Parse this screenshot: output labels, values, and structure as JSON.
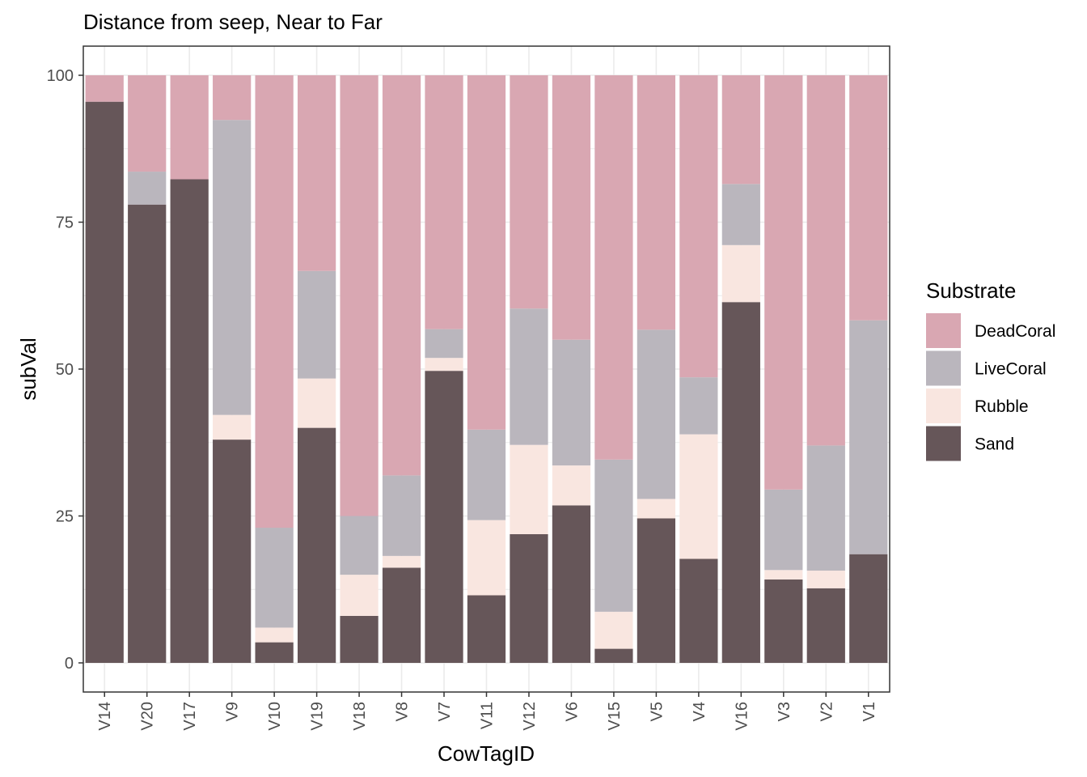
{
  "chart_data": {
    "type": "bar",
    "stacked": true,
    "title": "Distance from seep, Near to Far",
    "xlabel": "CowTagID",
    "ylabel": "subVal",
    "ylim": [
      0,
      100
    ],
    "yticks": [
      0,
      25,
      50,
      75,
      100
    ],
    "grid": true,
    "legend": {
      "title": "Substrate",
      "position": "right"
    },
    "categories": [
      "V14",
      "V20",
      "V17",
      "V9",
      "V10",
      "V19",
      "V18",
      "V8",
      "V7",
      "V11",
      "V12",
      "V6",
      "V15",
      "V5",
      "V4",
      "V16",
      "V3",
      "V2",
      "V1"
    ],
    "series": [
      {
        "name": "Sand",
        "color": "#665659",
        "values": [
          95.5,
          78.0,
          82.3,
          38.0,
          3.5,
          40.0,
          8.0,
          16.2,
          49.7,
          11.5,
          21.9,
          26.8,
          2.4,
          24.6,
          17.7,
          61.4,
          14.2,
          12.7,
          18.5
        ]
      },
      {
        "name": "Rubble",
        "color": "#f9e6e0",
        "values": [
          0,
          0,
          0,
          4.2,
          2.5,
          8.4,
          7.0,
          2.0,
          2.2,
          12.8,
          15.2,
          6.8,
          6.3,
          3.3,
          21.2,
          9.7,
          1.6,
          3.0,
          0
        ]
      },
      {
        "name": "LiveCoral",
        "color": "#bab6bd",
        "values": [
          0,
          5.6,
          0,
          50.2,
          17.0,
          18.3,
          10.0,
          13.7,
          4.9,
          15.4,
          23.2,
          21.4,
          25.9,
          28.8,
          9.7,
          10.4,
          13.7,
          21.3,
          39.8
        ]
      },
      {
        "name": "DeadCoral",
        "color": "#d9a7b2",
        "values": [
          4.5,
          16.4,
          17.7,
          7.6,
          77.0,
          33.3,
          75.0,
          68.1,
          43.2,
          60.3,
          39.7,
          45.0,
          65.4,
          43.3,
          51.4,
          18.5,
          70.5,
          63.0,
          41.7
        ]
      }
    ],
    "legend_order": [
      "DeadCoral",
      "LiveCoral",
      "Rubble",
      "Sand"
    ]
  }
}
